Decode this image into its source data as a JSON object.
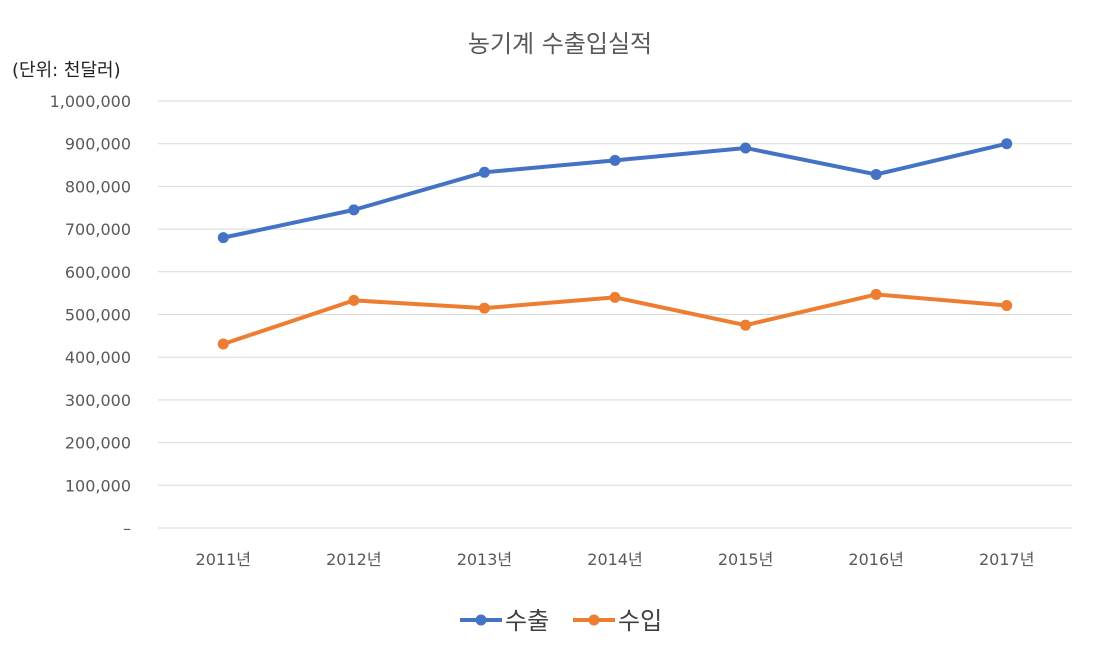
{
  "chart_data": {
    "type": "line",
    "title": "농기계 수출입실적",
    "unit_label": "(단위: 천달러)",
    "categories": [
      "2011년",
      "2012년",
      "2013년",
      "2014년",
      "2015년",
      "2016년",
      "2017년"
    ],
    "ylim": [
      0,
      1000000
    ],
    "y_ticks": [
      {
        "value": 0,
        "label": "–"
      },
      {
        "value": 100000,
        "label": "100,000"
      },
      {
        "value": 200000,
        "label": "200,000"
      },
      {
        "value": 300000,
        "label": "300,000"
      },
      {
        "value": 400000,
        "label": "400,000"
      },
      {
        "value": 500000,
        "label": "500,000"
      },
      {
        "value": 600000,
        "label": "600,000"
      },
      {
        "value": 700000,
        "label": "700,000"
      },
      {
        "value": 800000,
        "label": "800,000"
      },
      {
        "value": 900000,
        "label": "900,000"
      },
      {
        "value": 1000000,
        "label": "1,000,000"
      }
    ],
    "grid": true,
    "legend": "bottom",
    "series": [
      {
        "name": "수출",
        "color": "#4472C4",
        "values": [
          680000,
          745000,
          833000,
          861000,
          890000,
          828000,
          900000
        ]
      },
      {
        "name": "수입",
        "color": "#ED7D31",
        "values": [
          431000,
          533000,
          515000,
          540000,
          475000,
          547000,
          521000
        ]
      }
    ]
  }
}
